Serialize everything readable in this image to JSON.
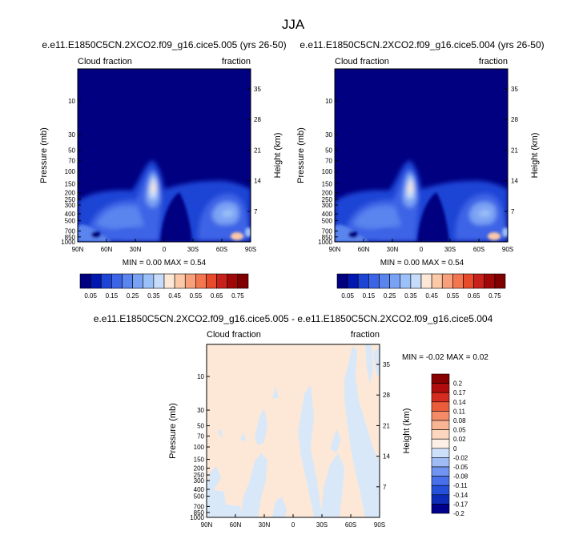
{
  "figure": {
    "title": "JJA"
  },
  "colors": {
    "abs_palette": [
      "#000080",
      "#0018b0",
      "#1e44d6",
      "#3c64e6",
      "#5a84ee",
      "#7aa2f4",
      "#9cc0f8",
      "#c6dcfa",
      "#fde8d8",
      "#fbc8a8",
      "#f8a07c",
      "#f47650",
      "#e84a2c",
      "#c8201a",
      "#a00808",
      "#800000"
    ],
    "diff_palette": [
      "#00008c",
      "#0c2cb8",
      "#2450da",
      "#4870ea",
      "#7094f0",
      "#a0bcf6",
      "#cde0fa",
      "#fdf0e6",
      "#fcd6be",
      "#f9b494",
      "#f48a66",
      "#ea5c3a",
      "#d42c1e",
      "#b00c0c",
      "#880000"
    ]
  },
  "chart_data": [
    {
      "type": "heatmap",
      "title": "e.e11.E1850C5CN.2XCO2.f09_g16.cice5.005 (yrs 26-50)",
      "left_label": "Cloud fraction",
      "right_label": "fraction",
      "ylabel": "Pressure (mb)",
      "y2label": "Height (km)",
      "x_ticks": [
        "90N",
        "60N",
        "30N",
        "0",
        "30S",
        "60S",
        "90S"
      ],
      "x_values": [
        90,
        60,
        30,
        0,
        -30,
        -60,
        -90
      ],
      "xlim": [
        90,
        -90
      ],
      "p_ticks": [
        10,
        30,
        50,
        70,
        100,
        150,
        200,
        250,
        300,
        400,
        500,
        700,
        850,
        1000
      ],
      "p_tick_labels": [
        "10",
        "30",
        "50",
        "70",
        "100",
        "150",
        "200",
        "250",
        "300",
        "400",
        "500",
        "700",
        "850",
        "1000"
      ],
      "ylim_p": [
        3.5,
        1000
      ],
      "y_scale": "log",
      "h_ticks": [
        35,
        28,
        21,
        14,
        7
      ],
      "h_tick_labels": [
        "35",
        "28",
        "21",
        "14",
        "7"
      ],
      "stats": "MIN =  0.00  MAX =   0.54",
      "min": 0.0,
      "max": 0.54,
      "colorbar": {
        "orientation": "horizontal",
        "levels": [
          0.05,
          0.1,
          0.15,
          0.2,
          0.25,
          0.3,
          0.35,
          0.4,
          0.45,
          0.5,
          0.55,
          0.6,
          0.65,
          0.7,
          0.75
        ],
        "labels": [
          "0.05",
          "0.15",
          "0.25",
          "0.35",
          "0.45",
          "0.55",
          "0.65",
          "0.75"
        ]
      }
    },
    {
      "type": "heatmap",
      "title": "e.e11.E1850C5CN.2XCO2.f09_g16.cice5.004 (yrs 26-50)",
      "left_label": "Cloud fraction",
      "right_label": "fraction",
      "ylabel": "Pressure (mb)",
      "y2label": "Height (km)",
      "x_ticks": [
        "90N",
        "60N",
        "30N",
        "0",
        "30S",
        "60S",
        "90S"
      ],
      "x_values": [
        90,
        60,
        30,
        0,
        -30,
        -60,
        -90
      ],
      "xlim": [
        90,
        -90
      ],
      "p_ticks": [
        10,
        30,
        50,
        70,
        100,
        150,
        200,
        250,
        300,
        400,
        500,
        700,
        850,
        1000
      ],
      "p_tick_labels": [
        "10",
        "30",
        "50",
        "70",
        "100",
        "150",
        "200",
        "250",
        "300",
        "400",
        "500",
        "700",
        "850",
        "1000"
      ],
      "ylim_p": [
        3.5,
        1000
      ],
      "y_scale": "log",
      "h_ticks": [
        35,
        28,
        21,
        14,
        7
      ],
      "h_tick_labels": [
        "35",
        "28",
        "21",
        "14",
        "7"
      ],
      "stats": "MIN =  0.00  MAX =   0.54",
      "min": 0.0,
      "max": 0.54,
      "colorbar": {
        "orientation": "horizontal",
        "levels": [
          0.05,
          0.1,
          0.15,
          0.2,
          0.25,
          0.3,
          0.35,
          0.4,
          0.45,
          0.5,
          0.55,
          0.6,
          0.65,
          0.7,
          0.75
        ],
        "labels": [
          "0.05",
          "0.15",
          "0.25",
          "0.35",
          "0.45",
          "0.55",
          "0.65",
          "0.75"
        ]
      }
    },
    {
      "type": "heatmap",
      "title": "e.e11.E1850C5CN.2XCO2.f09_g16.cice5.005 - e.e11.E1850C5CN.2XCO2.f09_g16.cice5.004",
      "left_label": "Cloud fraction",
      "right_label": "fraction",
      "ylabel": "Pressure (mb)",
      "y2label": "Height (km)",
      "x_ticks": [
        "90N",
        "60N",
        "30N",
        "0",
        "30S",
        "60S",
        "90S"
      ],
      "x_values": [
        90,
        60,
        30,
        0,
        -30,
        -60,
        -90
      ],
      "xlim": [
        90,
        -90
      ],
      "p_ticks": [
        10,
        30,
        50,
        70,
        100,
        150,
        200,
        250,
        300,
        400,
        500,
        700,
        850,
        1000
      ],
      "p_tick_labels": [
        "10",
        "30",
        "50",
        "70",
        "100",
        "150",
        "200",
        "250",
        "300",
        "400",
        "500",
        "700",
        "850",
        "1000"
      ],
      "ylim_p": [
        3.5,
        1000
      ],
      "y_scale": "log",
      "h_ticks": [
        35,
        28,
        21,
        14,
        7
      ],
      "h_tick_labels": [
        "35",
        "28",
        "21",
        "14",
        "7"
      ],
      "stats": "MIN = -0.02  MAX =   0.02",
      "min": -0.02,
      "max": 0.02,
      "colorbar": {
        "orientation": "vertical",
        "levels": [
          -0.2,
          -0.17,
          -0.14,
          -0.11,
          -0.08,
          -0.05,
          -0.02,
          0,
          0.02,
          0.05,
          0.08,
          0.11,
          0.14,
          0.17,
          0.2
        ],
        "labels": [
          "0.2",
          "0.17",
          "0.14",
          "0.11",
          "0.08",
          "0.05",
          "0.02",
          "0",
          "-0.02",
          "-0.05",
          "-0.08",
          "-0.11",
          "-0.14",
          "-0.17",
          "-0.2"
        ]
      }
    }
  ]
}
